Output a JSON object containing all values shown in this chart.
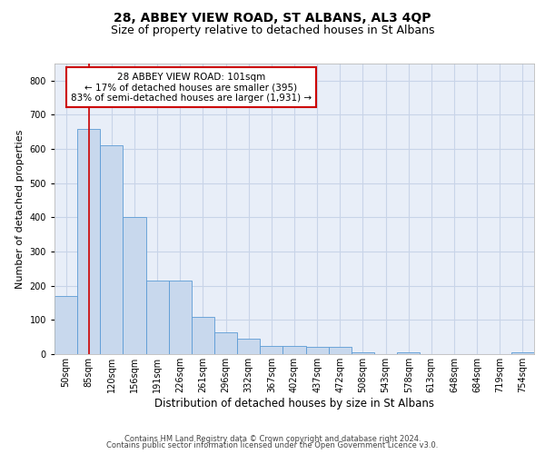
{
  "title": "28, ABBEY VIEW ROAD, ST ALBANS, AL3 4QP",
  "subtitle": "Size of property relative to detached houses in St Albans",
  "xlabel": "Distribution of detached houses by size in St Albans",
  "ylabel": "Number of detached properties",
  "categories": [
    "50sqm",
    "85sqm",
    "120sqm",
    "156sqm",
    "191sqm",
    "226sqm",
    "261sqm",
    "296sqm",
    "332sqm",
    "367sqm",
    "402sqm",
    "437sqm",
    "472sqm",
    "508sqm",
    "543sqm",
    "578sqm",
    "613sqm",
    "648sqm",
    "684sqm",
    "719sqm",
    "754sqm"
  ],
  "values": [
    170,
    660,
    610,
    400,
    215,
    215,
    110,
    65,
    45,
    25,
    25,
    20,
    20,
    5,
    0,
    5,
    0,
    0,
    0,
    0,
    5
  ],
  "bar_color": "#c8d8ed",
  "bar_edge_color": "#5b9bd5",
  "highlight_index": 1,
  "highlight_line_color": "#cc0000",
  "ylim": [
    0,
    850
  ],
  "yticks": [
    0,
    100,
    200,
    300,
    400,
    500,
    600,
    700,
    800
  ],
  "grid_color": "#c8d4e8",
  "background_color": "#e8eef8",
  "annotation_text": "28 ABBEY VIEW ROAD: 101sqm\n← 17% of detached houses are smaller (395)\n83% of semi-detached houses are larger (1,931) →",
  "annotation_box_color": "#ffffff",
  "annotation_box_edge": "#cc0000",
  "footer_line1": "Contains HM Land Registry data © Crown copyright and database right 2024.",
  "footer_line2": "Contains public sector information licensed under the Open Government Licence v3.0.",
  "title_fontsize": 10,
  "subtitle_fontsize": 9,
  "tick_fontsize": 7,
  "ylabel_fontsize": 8,
  "xlabel_fontsize": 8.5,
  "annotation_fontsize": 7.5,
  "footer_fontsize": 6
}
